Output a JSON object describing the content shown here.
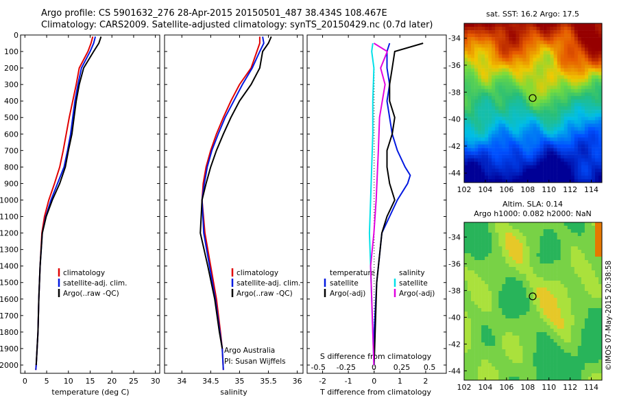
{
  "header": {
    "line1": "Argo profile: CS 5901632_276 28-Apr-2015 20150501_487 38.434S 108.467E",
    "line2": "Climatology: CARS2009. Satellite-adjusted climatology: synTS_20150429.nc (0.7d later)"
  },
  "colors": {
    "climatology": "#e00000",
    "satellite": "#0018e0",
    "argo": "#000000",
    "salinity_sat": "#00e0e8",
    "salinity_argo": "#e000e0"
  },
  "chart_data": [
    {
      "type": "line",
      "id": "temperature",
      "xlabel": "temperature (deg C)",
      "xlim": [
        -1,
        31
      ],
      "ylim": [
        2050,
        0
      ],
      "xticks": [
        0,
        5,
        10,
        15,
        20,
        25,
        30
      ],
      "yticks": [
        0,
        100,
        200,
        300,
        400,
        500,
        600,
        700,
        800,
        900,
        1000,
        1100,
        1200,
        1300,
        1400,
        1500,
        1600,
        1700,
        1800,
        1900,
        2000
      ],
      "legend": [
        "climatology",
        "satellite-adj. clim.",
        "Argo(..raw -QC)"
      ],
      "series": [
        {
          "name": "climatology",
          "color": "#e00000",
          "x": [
            15.6,
            15.2,
            14.5,
            12.5,
            11.8,
            11.0,
            10.2,
            9.5,
            8.8,
            8.0,
            6.8,
            5.5,
            4.5,
            3.9,
            3.5,
            3.2,
            3.0,
            2.8,
            2.6,
            2.5
          ],
          "y": [
            10,
            50,
            100,
            200,
            300,
            400,
            500,
            600,
            700,
            800,
            900,
            1000,
            1100,
            1200,
            1400,
            1600,
            1800,
            1900,
            2000,
            2030
          ]
        },
        {
          "name": "satellite-adj. clim.",
          "color": "#0018e0",
          "x": [
            16.2,
            15.8,
            15.0,
            13.0,
            12.2,
            11.5,
            11.0,
            10.5,
            9.8,
            9.0,
            7.5,
            6.0,
            4.8,
            4.0,
            3.5,
            3.2,
            3.0,
            2.8,
            2.6,
            2.5
          ],
          "y": [
            10,
            50,
            100,
            200,
            300,
            400,
            500,
            600,
            700,
            800,
            900,
            1000,
            1100,
            1200,
            1400,
            1600,
            1800,
            1900,
            2000,
            2030
          ]
        },
        {
          "name": "Argo(..raw -QC)",
          "color": "#000000",
          "x": [
            17.5,
            17.0,
            15.8,
            13.5,
            12.5,
            11.8,
            11.3,
            10.8,
            10.0,
            9.3,
            8.0,
            6.3,
            4.9,
            4.0,
            3.5,
            3.2,
            3.0,
            2.8,
            2.6
          ],
          "y": [
            10,
            50,
            100,
            200,
            300,
            400,
            500,
            600,
            700,
            800,
            900,
            1000,
            1100,
            1200,
            1400,
            1600,
            1800,
            1900,
            2000
          ]
        }
      ]
    },
    {
      "type": "line",
      "id": "salinity",
      "xlabel": "salinity",
      "xlim": [
        33.7,
        36.1
      ],
      "ylim": [
        2050,
        0
      ],
      "xticks": [
        34,
        34.5,
        35,
        35.5,
        36
      ],
      "xticklabels": [
        "34",
        "34.5",
        "35",
        "35.5",
        "36"
      ],
      "legend": [
        "climatology",
        "satellite-adj. clim.",
        "Argo(..raw -QC)"
      ],
      "annotations": [
        "Argo Australia",
        "PI: Susan Wijffels"
      ],
      "series": [
        {
          "name": "climatology",
          "color": "#e00000",
          "x": [
            35.35,
            35.35,
            35.3,
            35.2,
            35.0,
            34.85,
            34.72,
            34.6,
            34.5,
            34.42,
            34.37,
            34.35,
            34.4,
            34.5,
            34.6,
            34.67,
            34.7,
            34.72
          ],
          "y": [
            10,
            50,
            100,
            200,
            300,
            400,
            500,
            600,
            700,
            800,
            900,
            1000,
            1200,
            1400,
            1600,
            1800,
            1900,
            2030
          ]
        },
        {
          "name": "satellite-adj. clim.",
          "color": "#0018e0",
          "x": [
            35.4,
            35.42,
            35.35,
            35.22,
            35.05,
            34.9,
            34.75,
            34.63,
            34.52,
            34.44,
            34.39,
            34.35,
            34.38,
            34.48,
            34.58,
            34.66,
            34.7,
            34.72
          ],
          "y": [
            10,
            50,
            100,
            200,
            300,
            400,
            500,
            600,
            700,
            800,
            900,
            1000,
            1200,
            1400,
            1600,
            1800,
            1900,
            2030
          ]
        },
        {
          "name": "Argo(..raw -QC)",
          "color": "#000000",
          "x": [
            35.55,
            35.5,
            35.4,
            35.35,
            35.2,
            35.0,
            34.85,
            34.72,
            34.6,
            34.5,
            34.42,
            34.35,
            34.32,
            34.45,
            34.57,
            34.65,
            34.7
          ],
          "y": [
            10,
            50,
            100,
            200,
            300,
            400,
            500,
            600,
            700,
            800,
            900,
            1000,
            1200,
            1400,
            1600,
            1800,
            1900
          ]
        }
      ]
    },
    {
      "type": "line",
      "id": "difference",
      "xlabel": "T difference from climatology",
      "xlabel_top": "S difference from climatology",
      "xlim": [
        -2.6,
        2.8
      ],
      "ylim": [
        2050,
        0
      ],
      "xticks": [
        -2,
        -1,
        0,
        1,
        2
      ],
      "xticks_top": [
        -0.5,
        -0.25,
        0,
        0.25,
        0.5
      ],
      "xticklabels_top": [
        "-0.5",
        "-0.25",
        "0",
        "0.25",
        "0.5"
      ],
      "legend_groups": {
        "temperature": {
          "title": "temperature",
          "items": [
            "satellite",
            "Argo(-adj)"
          ]
        },
        "salinity": {
          "title": "salinity",
          "items": [
            "satellite",
            "Argo(-adj)"
          ]
        }
      },
      "series": [
        {
          "name": "temperature satellite",
          "color": "#0018e0",
          "x": [
            0.6,
            0.5,
            0.5,
            0.6,
            0.5,
            0.6,
            0.7,
            0.9,
            1.2,
            1.4,
            1.3,
            0.9,
            0.6,
            0.3,
            0.1,
            0.0,
            0.0
          ],
          "y": [
            50,
            100,
            200,
            300,
            400,
            500,
            600,
            700,
            800,
            850,
            900,
            1000,
            1100,
            1200,
            1500,
            1800,
            2000
          ]
        },
        {
          "name": "temperature Argo(-adj)",
          "color": "#000000",
          "x": [
            1.9,
            0.8,
            0.7,
            0.6,
            0.6,
            0.8,
            0.7,
            0.5,
            0.5,
            0.6,
            0.8,
            0.5,
            0.3,
            0.1,
            0.0
          ],
          "y": [
            50,
            100,
            200,
            300,
            400,
            500,
            600,
            700,
            800,
            900,
            1000,
            1100,
            1200,
            1500,
            2000
          ]
        },
        {
          "name": "salinity satellite",
          "color": "#00e0e8",
          "x": [
            -0.01,
            -0.02,
            0.0,
            -0.01,
            -0.01,
            -0.02,
            -0.03,
            -0.04,
            -0.03,
            -0.02,
            -0.01,
            0.0
          ],
          "y": [
            50,
            100,
            200,
            400,
            600,
            800,
            1000,
            1200,
            1400,
            1600,
            1800,
            2000
          ]
        },
        {
          "name": "salinity Argo(-adj)",
          "color": "#e000e0",
          "x": [
            0.0,
            0.12,
            0.06,
            0.1,
            0.05,
            0.04,
            0.02,
            0.0,
            -0.03,
            -0.02,
            -0.01,
            0.0
          ],
          "y": [
            50,
            100,
            200,
            300,
            500,
            700,
            1000,
            1200,
            1400,
            1600,
            1800,
            2000
          ]
        }
      ]
    },
    {
      "type": "heatmap",
      "id": "sst_map",
      "title": "sat. SST: 16.2 Argo: 17.5",
      "xlim": [
        102,
        115
      ],
      "ylim": [
        -44.7,
        -32.9
      ],
      "xticks": [
        102,
        104,
        106,
        108,
        110,
        112,
        114
      ],
      "yticks": [
        -34,
        -36,
        -38,
        -40,
        -42,
        -44
      ],
      "marker": {
        "lon": 108.467,
        "lat": -38.434
      }
    },
    {
      "type": "heatmap",
      "id": "sla_map",
      "title": "Altim. SLA: 0.14",
      "subtitle": "Argo h1000: 0.082 h2000: NaN",
      "xlim": [
        102,
        115
      ],
      "ylim": [
        -44.7,
        -32.9
      ],
      "xticks": [
        102,
        104,
        106,
        108,
        110,
        112,
        114
      ],
      "yticks": [
        -34,
        -36,
        -38,
        -40,
        -42,
        -44
      ],
      "marker": {
        "lon": 108.467,
        "lat": -38.434
      },
      "side_text": "©IMOS 07-May-2015 20:38:58"
    }
  ]
}
